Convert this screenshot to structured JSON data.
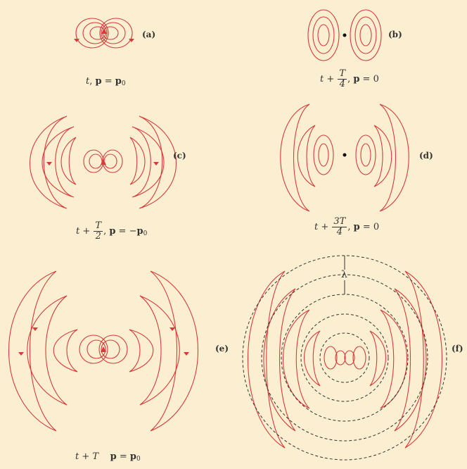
{
  "panels": {
    "a": {
      "label": "(a)",
      "t": "t",
      "sep": ", ",
      "p": "p",
      "eq": " = ",
      "val": "p",
      "sub": "0"
    },
    "b": {
      "label": "(b)",
      "pre": "t + ",
      "num": "T",
      "den": "4",
      "sep": ", ",
      "p": "p",
      "eq": " = 0"
    },
    "c": {
      "label": "(c)",
      "pre": "t + ",
      "num": "T",
      "den": "2",
      "sep": ", ",
      "p": "p",
      "eq": " = −",
      "val": "p",
      "sub": "0"
    },
    "d": {
      "label": "(d)",
      "pre": "t + ",
      "num": "3T",
      "den": "4",
      "sep": ", ",
      "p": "p",
      "eq": " = 0"
    },
    "e": {
      "label": "(e)",
      "t": "t + T",
      "p": "p",
      "eq": " = ",
      "val": "p",
      "sub": "0"
    },
    "f": {
      "label": "(f)",
      "lambda": "λ"
    }
  },
  "colors": {
    "line": "#d63a3a",
    "dash": "#333333",
    "bg": "#fcefd1"
  }
}
